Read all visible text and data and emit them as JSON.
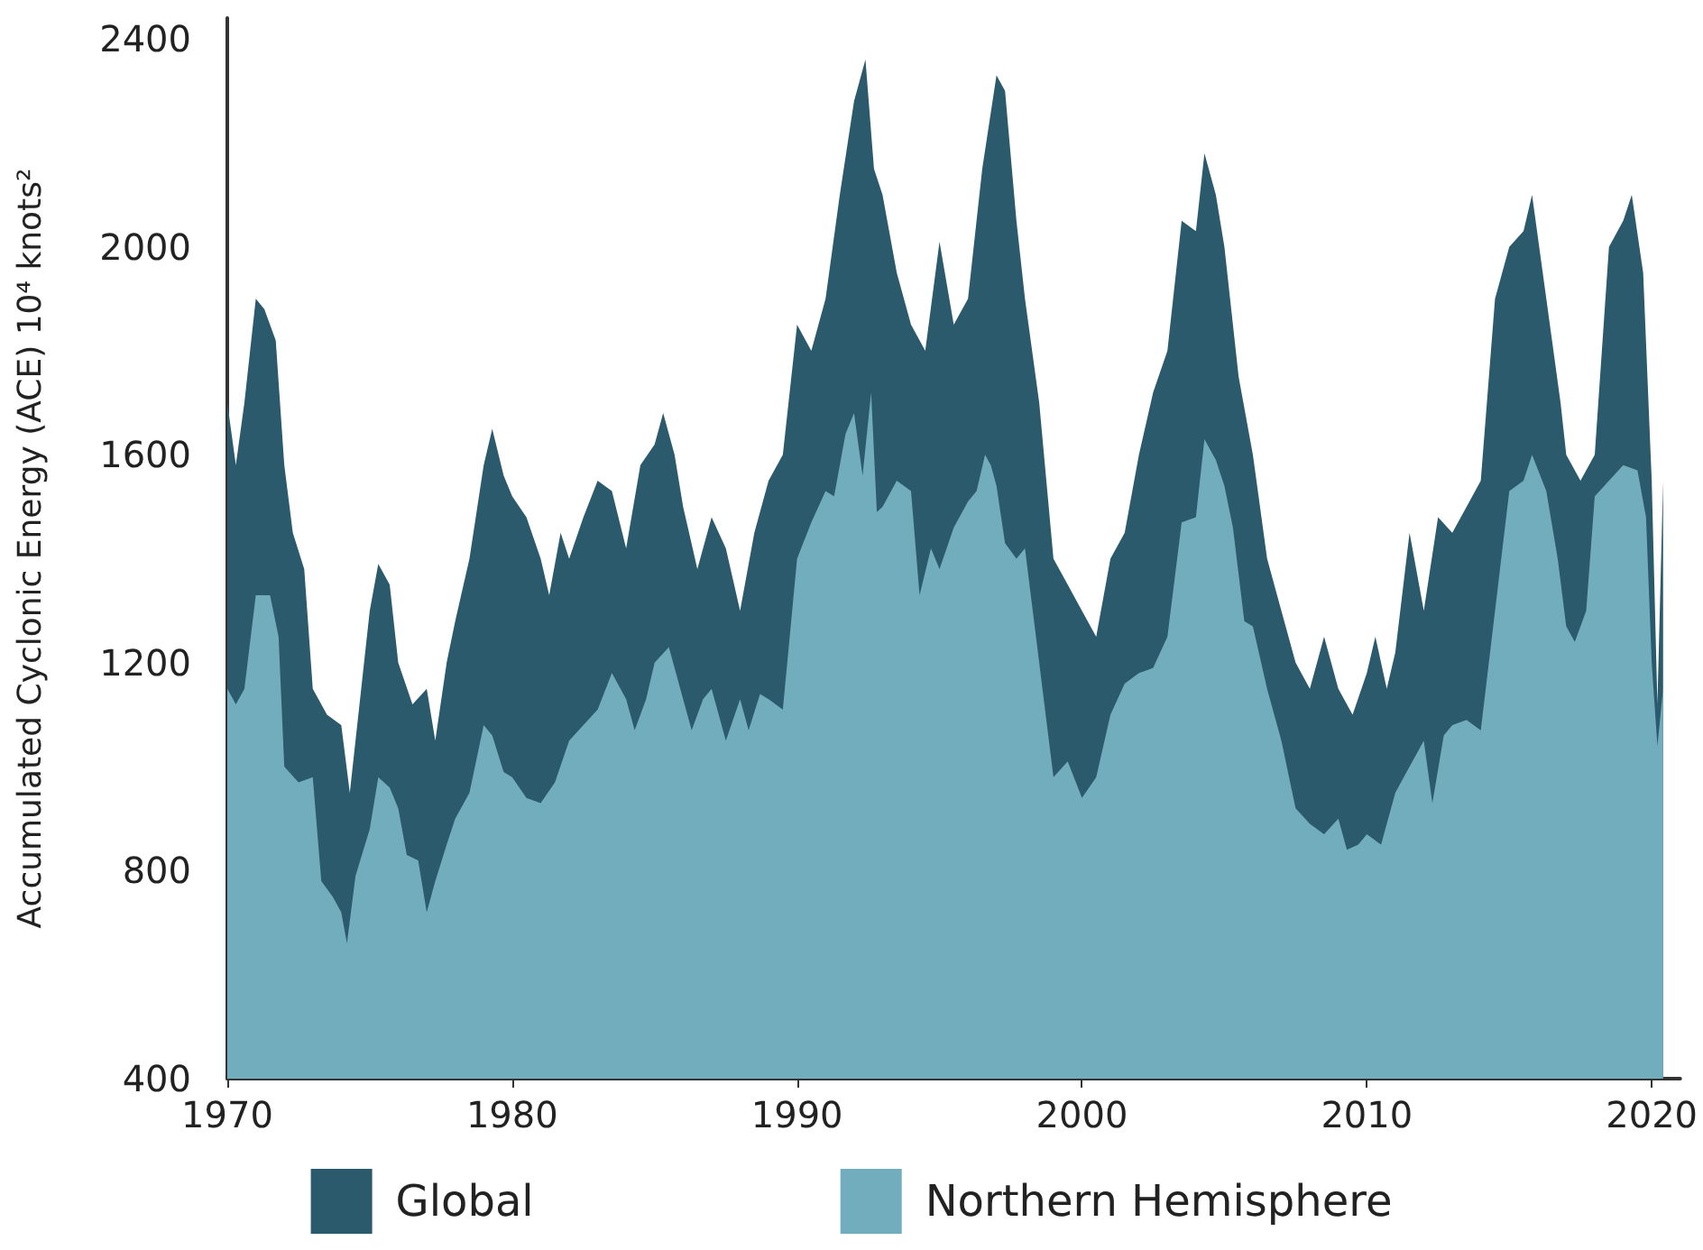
{
  "chart_data": {
    "type": "area",
    "ylabel": "Accumulated Cyclonic Energy (ACE) 10⁴ knots²",
    "xlim": [
      1970,
      2021
    ],
    "xticks": [
      1970,
      1980,
      1990,
      2000,
      2010,
      2020
    ],
    "ylim": [
      400,
      2440
    ],
    "yticks": [
      400,
      800,
      1200,
      1600,
      2000,
      2400
    ],
    "grid": false,
    "legend": "bottom",
    "marker": "none",
    "series": [
      {
        "name": "Global",
        "color": "#2a5a6b",
        "x": [
          1970.0,
          1970.3,
          1970.6,
          1971.0,
          1971.3,
          1971.7,
          1972.0,
          1972.3,
          1972.7,
          1973.0,
          1973.5,
          1974.0,
          1974.3,
          1974.7,
          1975.0,
          1975.3,
          1975.7,
          1976.0,
          1976.5,
          1977.0,
          1977.3,
          1977.7,
          1978.0,
          1978.5,
          1979.0,
          1979.3,
          1979.7,
          1980.0,
          1980.5,
          1981.0,
          1981.3,
          1981.7,
          1982.0,
          1982.5,
          1983.0,
          1983.5,
          1984.0,
          1984.5,
          1985.0,
          1985.3,
          1985.7,
          1986.0,
          1986.5,
          1987.0,
          1987.5,
          1988.0,
          1988.5,
          1989.0,
          1989.5,
          1990.0,
          1990.5,
          1991.0,
          1991.5,
          1992.0,
          1992.4,
          1992.7,
          1993.0,
          1993.5,
          1994.0,
          1994.5,
          1995.0,
          1995.5,
          1996.0,
          1996.5,
          1997.0,
          1997.3,
          1997.7,
          1998.0,
          1998.5,
          1999.0,
          1999.5,
          2000.0,
          2000.5,
          2001.0,
          2001.5,
          2002.0,
          2002.5,
          2003.0,
          2003.5,
          2004.0,
          2004.3,
          2004.7,
          2005.0,
          2005.5,
          2006.0,
          2006.5,
          2007.0,
          2007.5,
          2008.0,
          2008.5,
          2009.0,
          2009.5,
          2010.0,
          2010.3,
          2010.7,
          2011.0,
          2011.5,
          2012.0,
          2012.5,
          2013.0,
          2013.5,
          2014.0,
          2014.5,
          2015.0,
          2015.5,
          2015.8,
          2016.3,
          2016.8,
          2017.0,
          2017.5,
          2018.0,
          2018.5,
          2019.0,
          2019.3,
          2019.7,
          2020.0,
          2020.2,
          2020.4
        ],
        "values": [
          1700,
          1580,
          1700,
          1900,
          1880,
          1820,
          1580,
          1450,
          1380,
          1150,
          1100,
          1080,
          950,
          1150,
          1300,
          1390,
          1350,
          1200,
          1120,
          1150,
          1050,
          1200,
          1280,
          1400,
          1580,
          1650,
          1560,
          1520,
          1480,
          1400,
          1330,
          1450,
          1400,
          1480,
          1550,
          1530,
          1420,
          1580,
          1620,
          1680,
          1600,
          1500,
          1380,
          1480,
          1420,
          1300,
          1450,
          1550,
          1600,
          1850,
          1800,
          1900,
          2100,
          2280,
          2360,
          2150,
          2100,
          1950,
          1850,
          1800,
          2010,
          1850,
          1900,
          2150,
          2330,
          2300,
          2050,
          1900,
          1700,
          1400,
          1350,
          1300,
          1250,
          1400,
          1450,
          1600,
          1720,
          1800,
          2050,
          2030,
          2180,
          2100,
          2000,
          1750,
          1600,
          1400,
          1300,
          1200,
          1150,
          1250,
          1150,
          1100,
          1180,
          1250,
          1150,
          1220,
          1450,
          1300,
          1480,
          1450,
          1500,
          1550,
          1900,
          2000,
          2030,
          2100,
          1900,
          1700,
          1600,
          1550,
          1600,
          2000,
          2050,
          2100,
          1950,
          1550,
          1120,
          1550
        ]
      },
      {
        "name": "Northern Hemisphere",
        "color": "#72adbd",
        "x": [
          1970.0,
          1970.3,
          1970.6,
          1971.0,
          1971.5,
          1971.8,
          1972.0,
          1972.5,
          1973.0,
          1973.3,
          1973.7,
          1974.0,
          1974.2,
          1974.5,
          1975.0,
          1975.3,
          1975.7,
          1976.0,
          1976.3,
          1976.7,
          1977.0,
          1977.3,
          1977.7,
          1978.0,
          1978.5,
          1979.0,
          1979.3,
          1979.7,
          1980.0,
          1980.5,
          1981.0,
          1981.5,
          1982.0,
          1982.5,
          1983.0,
          1983.5,
          1984.0,
          1984.3,
          1984.7,
          1985.0,
          1985.5,
          1986.0,
          1986.3,
          1986.7,
          1987.0,
          1987.5,
          1988.0,
          1988.3,
          1988.7,
          1989.0,
          1989.5,
          1990.0,
          1990.5,
          1991.0,
          1991.3,
          1991.7,
          1992.0,
          1992.3,
          1992.6,
          1992.8,
          1993.0,
          1993.5,
          1994.0,
          1994.3,
          1994.7,
          1995.0,
          1995.5,
          1996.0,
          1996.3,
          1996.6,
          1996.8,
          1997.0,
          1997.3,
          1997.7,
          1998.0,
          1998.5,
          1999.0,
          1999.5,
          2000.0,
          2000.5,
          2001.0,
          2001.5,
          2002.0,
          2002.5,
          2003.0,
          2003.5,
          2004.0,
          2004.3,
          2004.7,
          2005.0,
          2005.3,
          2005.7,
          2006.0,
          2006.5,
          2007.0,
          2007.5,
          2008.0,
          2008.5,
          2009.0,
          2009.3,
          2009.7,
          2010.0,
          2010.5,
          2011.0,
          2011.5,
          2012.0,
          2012.3,
          2012.7,
          2013.0,
          2013.5,
          2014.0,
          2014.5,
          2015.0,
          2015.5,
          2015.8,
          2016.3,
          2016.7,
          2017.0,
          2017.3,
          2017.7,
          2018.0,
          2018.5,
          2019.0,
          2019.5,
          2019.8,
          2020.0,
          2020.2,
          2020.4
        ],
        "values": [
          1150,
          1120,
          1150,
          1330,
          1330,
          1250,
          1000,
          970,
          980,
          780,
          750,
          720,
          660,
          790,
          880,
          980,
          960,
          920,
          830,
          820,
          720,
          780,
          850,
          900,
          950,
          1080,
          1060,
          990,
          980,
          940,
          930,
          970,
          1050,
          1080,
          1110,
          1180,
          1130,
          1070,
          1130,
          1200,
          1230,
          1130,
          1070,
          1130,
          1150,
          1050,
          1130,
          1070,
          1140,
          1130,
          1110,
          1400,
          1470,
          1530,
          1520,
          1640,
          1680,
          1560,
          1720,
          1490,
          1500,
          1550,
          1530,
          1330,
          1420,
          1380,
          1460,
          1510,
          1530,
          1600,
          1580,
          1540,
          1430,
          1400,
          1420,
          1200,
          980,
          1010,
          940,
          980,
          1100,
          1160,
          1180,
          1190,
          1250,
          1470,
          1480,
          1630,
          1590,
          1540,
          1460,
          1280,
          1270,
          1150,
          1050,
          920,
          890,
          870,
          900,
          840,
          850,
          870,
          850,
          950,
          1000,
          1050,
          930,
          1060,
          1080,
          1090,
          1070,
          1300,
          1530,
          1550,
          1600,
          1530,
          1400,
          1270,
          1240,
          1300,
          1520,
          1550,
          1580,
          1570,
          1480,
          1200,
          1040,
          1150
        ]
      }
    ]
  }
}
